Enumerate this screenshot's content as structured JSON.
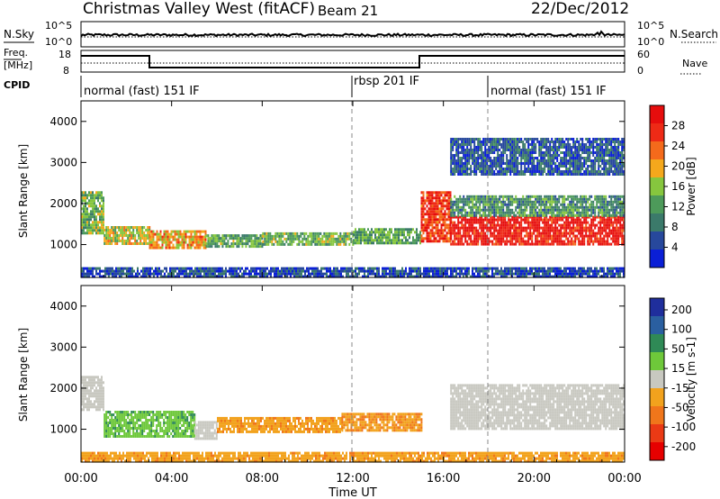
{
  "header": {
    "station": "Christmas Valley West (fitACF)",
    "beam": "Beam 21",
    "date": "22/Dec/2012"
  },
  "top_panels": {
    "nsky_label": "N.Sky",
    "nsky_ticks": [
      "10^5",
      "10^0"
    ],
    "nsearch_label": "N.Search",
    "nsearch_ticks": [
      "10^5",
      "10^0"
    ],
    "freq_label_1": "Freq.",
    "freq_label_2": "[MHz]",
    "freq_ticks": [
      "18",
      "8"
    ],
    "nave_label": "Nave",
    "nave_ticks": [
      "60",
      "0"
    ],
    "cpid_label": "CPID",
    "cpid_segments": [
      {
        "label": "normal (fast) 151 IF",
        "start_hour": 0,
        "end_hour": 12
      },
      {
        "label": "rbsp 201 IF",
        "start_hour": 12,
        "end_hour": 18
      },
      {
        "label": "normal (fast) 151 IF",
        "start_hour": 18,
        "end_hour": 24
      }
    ]
  },
  "colors": {
    "power_scale": [
      "#0a1fd6",
      "#27489c",
      "#3b7a6a",
      "#4d9a5a",
      "#86c63e",
      "#f4a81c",
      "#f46a1b",
      "#ee2a16",
      "#e60d0d"
    ],
    "velocity_scale": [
      "#1f2e9c",
      "#2a5fa0",
      "#2f8a56",
      "#6ec83a",
      "#c8c8c0",
      "#f2a21d",
      "#f0761b",
      "#ea3a15",
      "#e60000"
    ]
  },
  "chart_data": [
    {
      "type": "heatmap",
      "panel": "power",
      "ylabel": "Slant Range [km]",
      "xlabel": "",
      "x_ticks": [
        "00:00",
        "04:00",
        "08:00",
        "12:00",
        "16:00",
        "20:00",
        "00:00"
      ],
      "x_tick_hours": [
        0,
        4,
        8,
        12,
        16,
        20,
        24
      ],
      "y_ticks": [
        1000,
        2000,
        3000,
        4000
      ],
      "ylim": [
        200,
        4500
      ],
      "xlim": [
        0,
        24
      ],
      "colorbar_label": "Power [dB]",
      "colorbar_ticks": [
        "28",
        "24",
        "20",
        "16",
        "12",
        "8",
        "4"
      ],
      "colorbar_range": [
        0,
        32
      ],
      "scatter_bands": [
        {
          "t0": 0.0,
          "t1": 1.0,
          "r0": 1300,
          "r1": 2300,
          "value": 14
        },
        {
          "t0": 1.0,
          "t1": 3.0,
          "r0": 1000,
          "r1": 1450,
          "value": 18
        },
        {
          "t0": 3.0,
          "t1": 5.5,
          "r0": 900,
          "r1": 1350,
          "value": 21
        },
        {
          "t0": 5.5,
          "t1": 8.0,
          "r0": 950,
          "r1": 1250,
          "value": 13
        },
        {
          "t0": 8.0,
          "t1": 12.0,
          "r0": 1000,
          "r1": 1300,
          "value": 14
        },
        {
          "t0": 12.0,
          "t1": 15.0,
          "r0": 1050,
          "r1": 1400,
          "value": 12
        },
        {
          "t0": 15.0,
          "t1": 16.3,
          "r0": 1100,
          "r1": 2300,
          "value": 26
        },
        {
          "t0": 16.3,
          "t1": 24.0,
          "r0": 1000,
          "r1": 1700,
          "value": 29
        },
        {
          "t0": 16.3,
          "t1": 24.0,
          "r0": 1700,
          "r1": 2200,
          "value": 11
        },
        {
          "t0": 16.3,
          "t1": 24.0,
          "r0": 2700,
          "r1": 3600,
          "value": 6
        },
        {
          "t0": 0.0,
          "t1": 24.0,
          "r0": 200,
          "r1": 450,
          "value": 5
        }
      ]
    },
    {
      "type": "heatmap",
      "panel": "velocity",
      "ylabel": "Slant Range [km]",
      "xlabel": "Time UT",
      "x_ticks": [
        "00:00",
        "04:00",
        "08:00",
        "12:00",
        "16:00",
        "20:00",
        "00:00"
      ],
      "x_tick_hours": [
        0,
        4,
        8,
        12,
        16,
        20,
        24
      ],
      "y_ticks": [
        1000,
        2000,
        3000,
        4000
      ],
      "ylim": [
        200,
        4500
      ],
      "xlim": [
        0,
        24
      ],
      "colorbar_label": "Velocity [m s-1]",
      "colorbar_ticks": [
        "200",
        "100",
        "50",
        "15",
        "-15",
        "-50",
        "-100",
        "-200"
      ],
      "scatter_bands": [
        {
          "t0": 0.0,
          "t1": 1.0,
          "r0": 1500,
          "r1": 2300,
          "value": 0
        },
        {
          "t0": 1.0,
          "t1": 5.0,
          "r0": 800,
          "r1": 1450,
          "value": 40
        },
        {
          "t0": 5.0,
          "t1": 6.0,
          "r0": 800,
          "r1": 1200,
          "value": 0
        },
        {
          "t0": 6.0,
          "t1": 11.5,
          "r0": 950,
          "r1": 1300,
          "value": -40
        },
        {
          "t0": 11.5,
          "t1": 15.0,
          "r0": 1000,
          "r1": 1400,
          "value": -45
        },
        {
          "t0": 16.3,
          "t1": 24.0,
          "r0": 1000,
          "r1": 2100,
          "value": 0
        },
        {
          "t0": 0.0,
          "t1": 24.0,
          "r0": 200,
          "r1": 450,
          "value": -40
        }
      ]
    }
  ]
}
